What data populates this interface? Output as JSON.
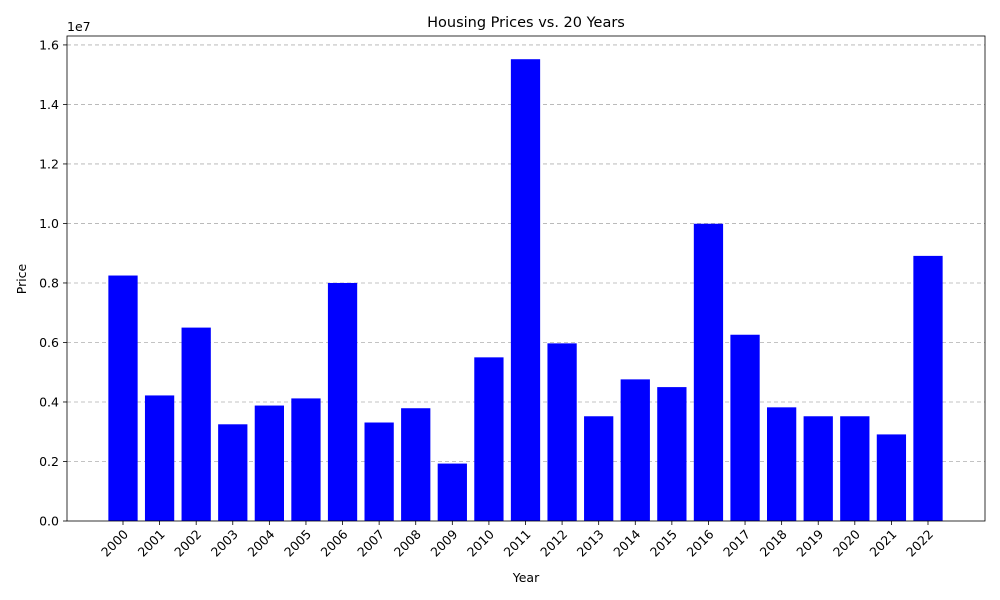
{
  "chart_data": {
    "type": "bar",
    "title": "Housing Prices vs. 20 Years",
    "xlabel": "Year",
    "ylabel": "Price",
    "y_offset_label": "1e7",
    "categories": [
      "2000",
      "2001",
      "2002",
      "2003",
      "2004",
      "2005",
      "2006",
      "2007",
      "2008",
      "2009",
      "2010",
      "2011",
      "2012",
      "2013",
      "2014",
      "2015",
      "2016",
      "2017",
      "2018",
      "2019",
      "2020",
      "2021",
      "2022"
    ],
    "values": [
      8250000,
      4220000,
      6500000,
      3250000,
      3880000,
      4120000,
      8000000,
      3310000,
      3790000,
      1930000,
      5500000,
      15520000,
      5970000,
      3520000,
      4760000,
      4500000,
      9990000,
      6260000,
      3820000,
      3520000,
      3520000,
      2910000,
      8910000
    ],
    "yticks": [
      0,
      2000000,
      4000000,
      6000000,
      8000000,
      10000000,
      12000000,
      14000000,
      16000000
    ],
    "ytick_labels": [
      "0.0",
      "0.2",
      "0.4",
      "0.6",
      "0.8",
      "1.0",
      "1.2",
      "1.4",
      "1.6"
    ],
    "ylim": [
      0,
      16300000
    ],
    "bar_color": "#0000ff",
    "grid": "y-dashed",
    "xtick_rotation": "45"
  }
}
